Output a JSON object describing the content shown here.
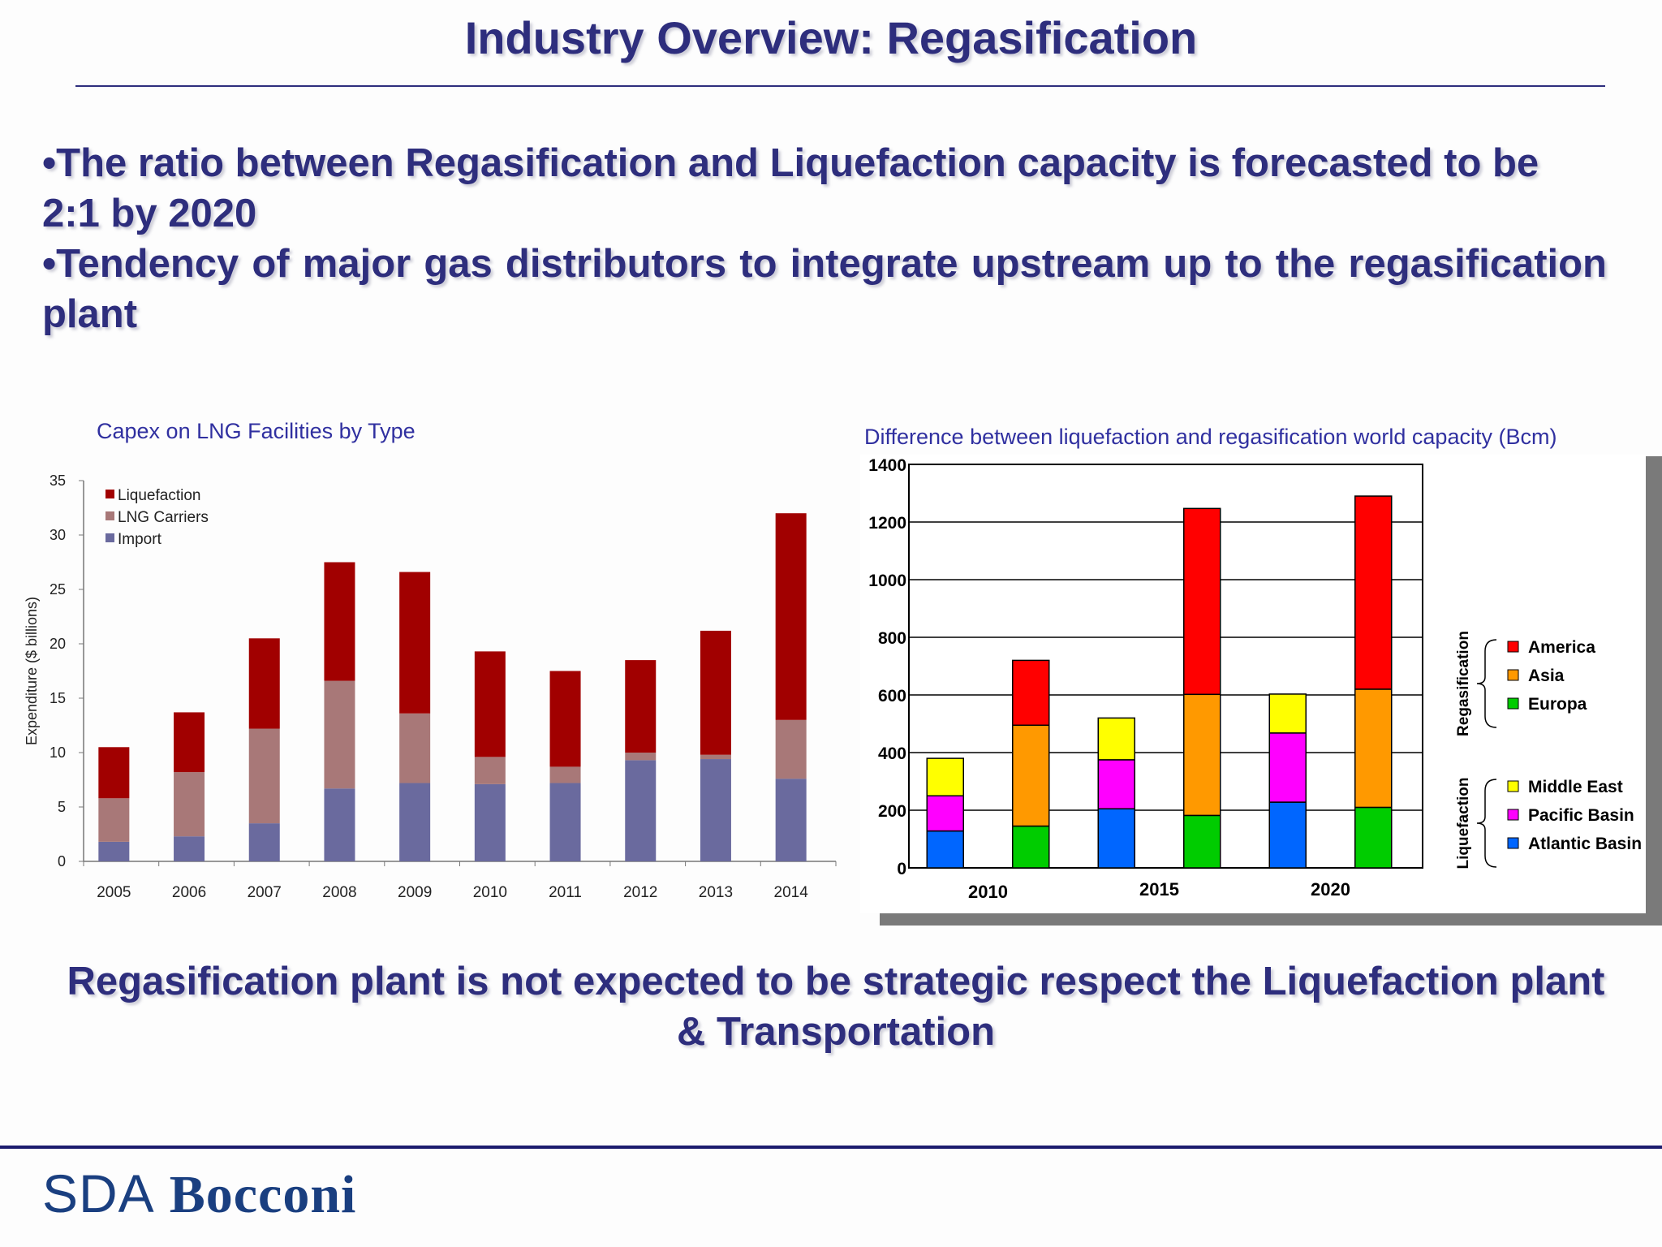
{
  "header": {
    "title": "Industry Overview: Regasification"
  },
  "bullets": [
    "•The ratio between Regasification and Liquefaction capacity is forecasted to be 2:1 by 2020",
    "•Tendency of major gas distributors to integrate upstream up to the regasification plant"
  ],
  "conclusion": "Regasification plant is not expected to be strategic respect the Liquefaction plant & Transportation",
  "footer": {
    "logo_sda": "SDA",
    "logo_bocconi": "Bocconi"
  },
  "colors": {
    "text_navy": "#2e2e7d",
    "chart_title": "#3030a0"
  },
  "chart_data": [
    {
      "type": "bar",
      "stacked": true,
      "title": "Capex on LNG Facilities by Type",
      "xlabel": "",
      "ylabel": "Expenditure ($ billions)",
      "ylim": [
        0,
        35
      ],
      "yticks": [
        0,
        5,
        10,
        15,
        20,
        25,
        30,
        35
      ],
      "categories": [
        "2005",
        "2006",
        "2007",
        "2008",
        "2009",
        "2010",
        "2011",
        "2012",
        "2013",
        "2014"
      ],
      "series": [
        {
          "name": "Import",
          "color": "#6a6a9e",
          "values": [
            1.8,
            2.3,
            3.5,
            6.7,
            7.2,
            7.1,
            7.2,
            9.3,
            9.4,
            7.6
          ]
        },
        {
          "name": "LNG Carriers",
          "color": "#a87878",
          "values": [
            4.0,
            5.9,
            8.7,
            9.9,
            6.4,
            2.5,
            1.5,
            0.7,
            0.4,
            5.4
          ]
        },
        {
          "name": "Liquefaction",
          "color": "#a10000",
          "values": [
            4.7,
            5.5,
            8.3,
            10.9,
            13.0,
            9.7,
            8.8,
            8.5,
            11.4,
            19.0
          ]
        }
      ],
      "legend": {
        "placement": "top-left",
        "order": [
          "Liquefaction",
          "LNG Carriers",
          "Import"
        ]
      },
      "grid": false
    },
    {
      "type": "bar",
      "stacked": true,
      "title": "Difference between liquefaction and regasification world capacity (Bcm)",
      "xlabel": "",
      "ylabel": "",
      "ylim": [
        0,
        1400
      ],
      "yticks": [
        0,
        200,
        400,
        600,
        800,
        1000,
        1200,
        1400
      ],
      "grid": true,
      "groups": [
        "2010",
        "2015",
        "2020"
      ],
      "bars": [
        {
          "group": "2010",
          "kind": "Liquefaction",
          "segments": [
            128,
            122,
            130
          ]
        },
        {
          "group": "2010",
          "kind": "Regasification",
          "segments": [
            145,
            350,
            225
          ]
        },
        {
          "group": "2015",
          "kind": "Liquefaction",
          "segments": [
            205,
            170,
            145
          ]
        },
        {
          "group": "2015",
          "kind": "Regasification",
          "segments": [
            182,
            420,
            645
          ]
        },
        {
          "group": "2020",
          "kind": "Liquefaction",
          "segments": [
            228,
            240,
            135
          ]
        },
        {
          "group": "2020",
          "kind": "Regasification",
          "segments": [
            210,
            410,
            670
          ]
        }
      ],
      "series": {
        "Liquefaction": [
          {
            "name": "Atlantic Basin",
            "color": "#0066ff"
          },
          {
            "name": "Pacific Basin",
            "color": "#ff00ff"
          },
          {
            "name": "Middle East",
            "color": "#ffff00"
          }
        ],
        "Regasification": [
          {
            "name": "Europa",
            "color": "#00cc00"
          },
          {
            "name": "Asia",
            "color": "#ff9900"
          },
          {
            "name": "America",
            "color": "#ff0000"
          }
        ]
      },
      "legend_groups": [
        {
          "label": "Regasification",
          "items": [
            "America",
            "Asia",
            "Europa"
          ]
        },
        {
          "label": "Liquefaction",
          "items": [
            "Middle East",
            "Pacific Basin",
            "Atlantic Basin"
          ]
        }
      ]
    }
  ]
}
